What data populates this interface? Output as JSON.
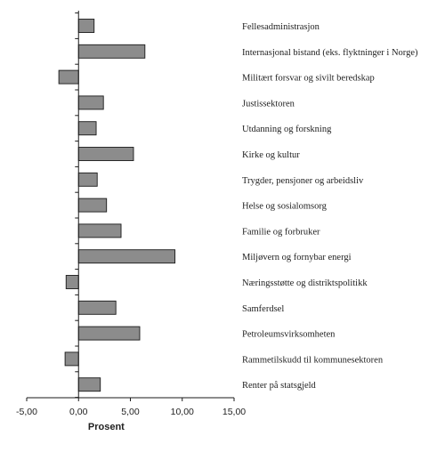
{
  "chart_data": {
    "type": "bar",
    "orientation": "horizontal",
    "categories": [
      "Fellesadministrasjon",
      "Internasjonal bistand  (eks. flyktninger i Norge)",
      "Militært forsvar og sivilt beredskap",
      "Justissektoren",
      "Utdanning og forskning",
      "Kirke og kultur",
      "Trygder, pensjoner og arbeidsliv",
      "Helse og sosialomsorg",
      "Familie og forbruker",
      "Miljøvern og fornybar energi",
      "Næringsstøtte og distriktspolitikk",
      "Samferdsel",
      "Petroleumsvirksomheten",
      "Rammetilskudd til kommunesektoren",
      "Renter på statsgjeld"
    ],
    "values": [
      1.5,
      6.4,
      -1.9,
      2.4,
      1.7,
      5.3,
      1.8,
      2.7,
      4.1,
      9.3,
      -1.2,
      3.6,
      5.9,
      -1.3,
      2.1
    ],
    "xlabel": "Prosent",
    "xlim": [
      -5,
      15
    ],
    "xticks": [
      "-5,00",
      "0,00",
      "5,00",
      "10,00",
      "15,00"
    ],
    "xtick_values": [
      -5,
      0,
      5,
      10,
      15
    ],
    "grid": false,
    "bar_color": "#8c8c8c"
  }
}
